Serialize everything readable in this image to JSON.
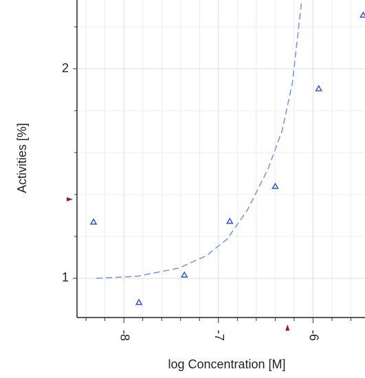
{
  "chart_data": {
    "type": "scatter",
    "x_label": "log Concentration [M]",
    "y_label": "Activities [%]",
    "xlim": [
      -8.495,
      -5.451
    ],
    "ylim": [
      0.813,
      2.328
    ],
    "xticks": [
      -8,
      -7,
      -6
    ],
    "yticks": [
      1,
      2
    ],
    "xminor": [
      -8.4,
      -8.2,
      -7.8,
      -7.6,
      -7.4,
      -7.2,
      -6.8,
      -6.6,
      -6.4,
      -6.2,
      -5.8,
      -5.6
    ],
    "yminor": [
      1.2,
      1.4,
      1.6,
      1.8,
      2.2
    ],
    "grid": true,
    "series": [
      {
        "color": "#2f56d0",
        "marker": "triangle",
        "x": [
          -8.32,
          -7.84,
          -7.36,
          -6.88,
          -6.4,
          -5.94,
          -5.47
        ],
        "values": [
          1.269,
          0.885,
          1.016,
          1.272,
          1.439,
          1.905,
          2.256
        ]
      },
      {
        "color": "#6f93e6",
        "line": "dashed",
        "x": [
          -8.291,
          -7.855,
          -7.418,
          -7.127,
          -6.909,
          -6.691,
          -6.473,
          -6.327,
          -6.218,
          -6.124
        ],
        "values": [
          1.0,
          1.01,
          1.049,
          1.108,
          1.187,
          1.328,
          1.525,
          1.705,
          1.934,
          2.311
        ]
      }
    ],
    "x_marker": -6.27,
    "y_marker": 1.377,
    "marker_color": "#a01818"
  }
}
